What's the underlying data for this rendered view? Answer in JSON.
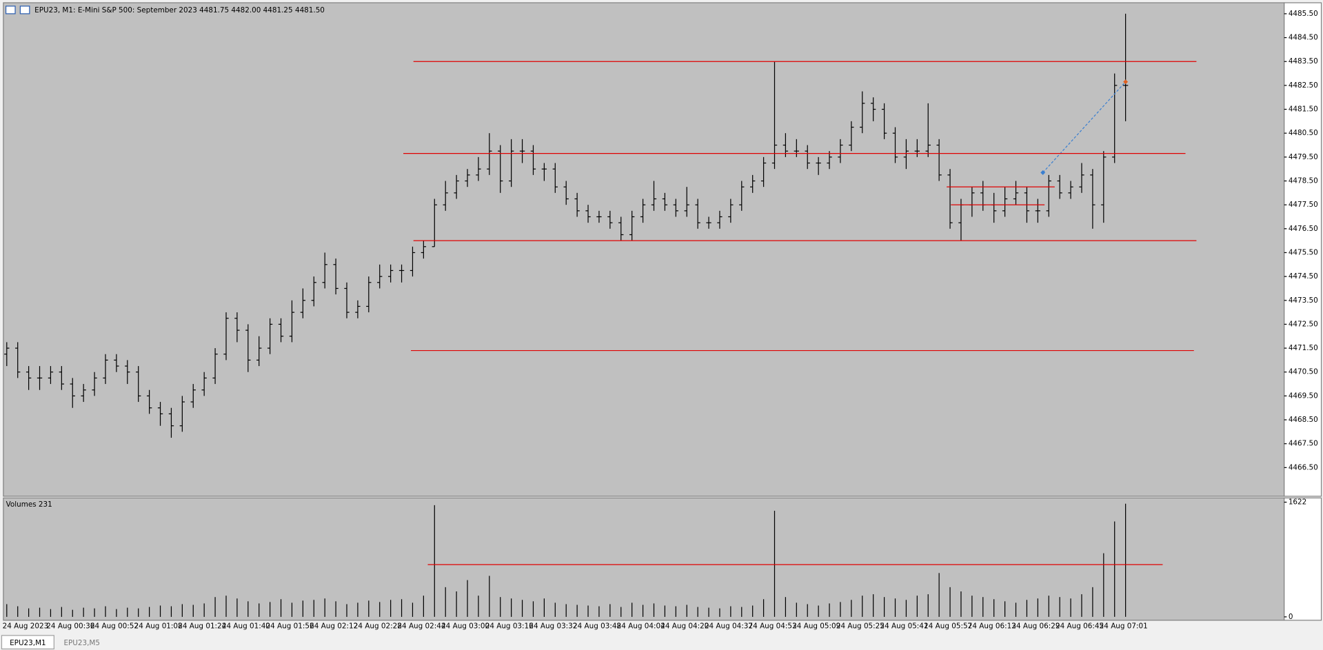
{
  "chart_data": [
    {
      "type": "ohlc",
      "title": "EPU23, M1:  E-Mini S&P 500: September 2023  4481.75 4482.00 4481.25 4481.50",
      "color": "#000000",
      "categories": [
        "24 Aug 2023",
        null,
        null,
        null,
        "24 Aug 00:36",
        null,
        null,
        null,
        "24 Aug 00:52",
        null,
        null,
        null,
        "24 Aug 01:08",
        null,
        null,
        null,
        "24 Aug 01:24",
        null,
        null,
        null,
        "24 Aug 01:40",
        null,
        null,
        null,
        "24 Aug 01:56",
        null,
        null,
        null,
        "24 Aug 02:12",
        null,
        null,
        null,
        "24 Aug 02:28",
        null,
        null,
        null,
        "24 Aug 02:44",
        null,
        null,
        null,
        "24 Aug 03:00",
        null,
        null,
        null,
        "24 Aug 03:16",
        null,
        null,
        null,
        "24 Aug 03:32",
        null,
        null,
        null,
        "24 Aug 03:48",
        null,
        null,
        null,
        "24 Aug 04:04",
        null,
        null,
        null,
        "24 Aug 04:20",
        null,
        null,
        null,
        "24 Aug 04:37",
        null,
        null,
        null,
        "24 Aug 04:53",
        null,
        null,
        null,
        "24 Aug 05:09",
        null,
        null,
        null,
        "24 Aug 05:25",
        null,
        null,
        null,
        "24 Aug 05:41",
        null,
        null,
        null,
        "24 Aug 05:57",
        null,
        null,
        null,
        "24 Aug 06:13",
        null,
        null,
        null,
        "24 Aug 06:29",
        null,
        null,
        null,
        "24 Aug 06:45",
        null,
        null,
        null,
        "24 Aug 07:01",
        null,
        null
      ],
      "open": [
        4471.25,
        4471.5,
        4470.5,
        4470.25,
        4470.25,
        4470.5,
        4470,
        4469.5,
        4469.75,
        4470.25,
        4471,
        4470.75,
        4470.5,
        4469.5,
        4469,
        4468.75,
        4468.25,
        4469.25,
        4469.75,
        4470.25,
        4471.25,
        4472.75,
        4472.25,
        4471,
        4471.5,
        4472.5,
        4472,
        4473,
        4473.5,
        4474.25,
        4475,
        4474,
        4473,
        4473.25,
        4474.25,
        4474.5,
        4474.75,
        4474.75,
        4475.5,
        4475.75,
        4477.5,
        4478,
        4478.5,
        4478.75,
        4479,
        4479.75,
        4478.5,
        4479.75,
        4479.75,
        4479,
        4479,
        4478.25,
        4477.75,
        4477.25,
        4477,
        4477,
        4476.75,
        4476.25,
        4477,
        4477.5,
        4477.75,
        4477.5,
        4477.25,
        4477.5,
        4476.75,
        4476.75,
        4477,
        4477.5,
        4478.25,
        4478.5,
        4479.25,
        4480,
        4479.75,
        4479.75,
        4479.25,
        4479.25,
        4479.5,
        4480,
        4480.75,
        4481.75,
        4481.5,
        4480.5,
        4479.5,
        4479.75,
        4479.75,
        4480,
        4478.75,
        4476.75,
        4477.5,
        4478,
        4477.5,
        4477.25,
        4477.75,
        4478,
        4477.25,
        4477.25,
        4478.5,
        4478,
        4478.25,
        4478.75,
        4477.5,
        4479.5,
        4482.5
      ],
      "high": [
        4471.75,
        4471.75,
        4470.75,
        4470.75,
        4470.75,
        4470.75,
        4470.25,
        4470,
        4470.5,
        4471.25,
        4471.25,
        4471,
        4470.75,
        4469.75,
        4469.25,
        4469,
        4469.5,
        4470,
        4470.5,
        4471.5,
        4473,
        4473,
        4472.5,
        4472,
        4472.75,
        4472.75,
        4473.5,
        4474,
        4474.5,
        4475.5,
        4475.25,
        4474.25,
        4473.5,
        4474.5,
        4475,
        4475,
        4475,
        4475.75,
        4476,
        4477.75,
        4478.5,
        4478.75,
        4479,
        4479.5,
        4480.5,
        4480,
        4480.25,
        4480.25,
        4480,
        4479.25,
        4479.25,
        4478.5,
        4478,
        4477.5,
        4477.25,
        4477.25,
        4477,
        4477.25,
        4477.75,
        4478.5,
        4478,
        4477.75,
        4478.25,
        4477.75,
        4477,
        4477.25,
        4477.75,
        4478.5,
        4478.75,
        4479.5,
        4483.5,
        4480.5,
        4480.25,
        4480,
        4479.5,
        4479.75,
        4480.25,
        4481,
        4482.25,
        4482,
        4481.75,
        4480.75,
        4480.25,
        4480.25,
        4481.75,
        4480.25,
        4479,
        4477.75,
        4478.25,
        4478.5,
        4478,
        4478.25,
        4478.5,
        4478.25,
        4477.75,
        4478.75,
        4478.75,
        4478.5,
        4479.25,
        4479,
        4479.75,
        4483,
        4485.5
      ],
      "low": [
        4470.75,
        4470.25,
        4469.75,
        4469.75,
        4470,
        4469.75,
        4469,
        4469.25,
        4469.5,
        4470,
        4470.5,
        4470,
        4469.25,
        4468.75,
        4468.25,
        4467.75,
        4468,
        4469,
        4469.5,
        4470,
        4471,
        4471.75,
        4470.5,
        4470.75,
        4471.25,
        4471.75,
        4471.75,
        4472.75,
        4473.25,
        4474,
        4473.75,
        4472.75,
        4472.75,
        4473,
        4474,
        4474.25,
        4474.25,
        4474.5,
        4475.25,
        4475.75,
        4477.25,
        4477.75,
        4478.25,
        4478.5,
        4478.75,
        4478,
        4478.25,
        4479.25,
        4478.75,
        4478.5,
        4478,
        4477.5,
        4477,
        4476.75,
        4476.75,
        4476.5,
        4476,
        4476,
        4476.75,
        4477.25,
        4477.25,
        4477,
        4477,
        4476.5,
        4476.5,
        4476.5,
        4476.75,
        4477.25,
        4478,
        4478.25,
        4479,
        4479.5,
        4479.5,
        4479,
        4478.75,
        4479,
        4479.25,
        4479.75,
        4480.5,
        4481,
        4480.25,
        4479.25,
        4479,
        4479.5,
        4479.5,
        4478.5,
        4476.5,
        4476,
        4477,
        4477.25,
        4476.75,
        4477,
        4477.5,
        4476.75,
        4476.75,
        4477,
        4477.75,
        4477.75,
        4478,
        4476.5,
        4476.75,
        4479.25,
        4481
      ],
      "close": [
        4471.5,
        4470.5,
        4470.25,
        4470.25,
        4470.5,
        4470,
        4469.5,
        4469.75,
        4470.25,
        4471,
        4470.75,
        4470.5,
        4469.5,
        4469,
        4468.75,
        4468.25,
        4469.25,
        4469.75,
        4470.25,
        4471.25,
        4472.75,
        4472.25,
        4471,
        4471.5,
        4472.5,
        4472,
        4473,
        4473.5,
        4474.25,
        4475,
        4474,
        4473,
        4473.25,
        4474.25,
        4474.5,
        4474.75,
        4474.75,
        4475.5,
        4475.75,
        4477.5,
        4478,
        4478.5,
        4478.75,
        4479,
        4479.75,
        4478.5,
        4479.75,
        4479.75,
        4479,
        4479,
        4478.25,
        4477.75,
        4477.25,
        4477,
        4477,
        4476.75,
        4476.25,
        4477,
        4477.5,
        4477.75,
        4477.5,
        4477.25,
        4477.5,
        4476.75,
        4476.75,
        4477,
        4477.5,
        4478.25,
        4478.5,
        4479.25,
        4480,
        4479.75,
        4479.75,
        4479.25,
        4479.25,
        4479.5,
        4480,
        4480.75,
        4481.75,
        4481.5,
        4480.5,
        4479.5,
        4479.75,
        4479.75,
        4480,
        4478.75,
        4476.75,
        4477.5,
        4478,
        4477.5,
        4477.25,
        4477.75,
        4478,
        4477.25,
        4477.25,
        4478.5,
        4478,
        4478.25,
        4478.75,
        4477.5,
        4479.5,
        4482.5,
        4482.5
      ],
      "levels": {
        "color": "#e00000",
        "values": [
          4483.5,
          4479.65,
          4476.0,
          4471.4,
          4478.25,
          4477.5
        ]
      },
      "trend_line": {
        "color": "#3a7fd0",
        "values": [
          4478.85,
          4482.65
        ]
      },
      "ylim": [
        4465.3,
        4485.96
      ],
      "yticks": [
        {
          "value": 4485.5,
          "label": "4485.50"
        },
        {
          "value": 4484.5,
          "label": "4484.50"
        },
        {
          "value": 4483.5,
          "label": "4483.50"
        },
        {
          "value": 4482.5,
          "label": "4482.50"
        },
        {
          "value": 4481.5,
          "label": "4481.50"
        },
        {
          "value": 4480.5,
          "label": "4480.50"
        },
        {
          "value": 4479.5,
          "label": "4479.50"
        },
        {
          "value": 4478.5,
          "label": "4478.50"
        },
        {
          "value": 4477.5,
          "label": "4477.50"
        },
        {
          "value": 4476.5,
          "label": "4476.50"
        },
        {
          "value": 4475.5,
          "label": "4475.50"
        },
        {
          "value": 4474.5,
          "label": "4474.50"
        },
        {
          "value": 4473.5,
          "label": "4473.50"
        },
        {
          "value": 4472.5,
          "label": "4472.50"
        },
        {
          "value": 4471.5,
          "label": "4471.50"
        },
        {
          "value": 4470.5,
          "label": "4470.50"
        },
        {
          "value": 4469.5,
          "label": "4469.50"
        },
        {
          "value": 4468.5,
          "label": "4468.50"
        },
        {
          "value": 4467.5,
          "label": "4467.50"
        },
        {
          "value": 4466.5,
          "label": "4466.50"
        }
      ]
    },
    {
      "type": "bar",
      "title": "Volumes 231",
      "color": "#000000",
      "values": [
        180,
        150,
        120,
        130,
        110,
        140,
        100,
        130,
        120,
        150,
        110,
        130,
        120,
        140,
        160,
        150,
        180,
        170,
        190,
        280,
        300,
        260,
        220,
        190,
        210,
        250,
        200,
        230,
        240,
        260,
        220,
        180,
        200,
        230,
        210,
        240,
        250,
        200,
        300,
        1580,
        420,
        360,
        520,
        300,
        580,
        280,
        260,
        240,
        220,
        260,
        200,
        180,
        170,
        160,
        150,
        180,
        140,
        200,
        170,
        190,
        160,
        150,
        170,
        140,
        130,
        120,
        150,
        140,
        160,
        250,
        1500,
        280,
        200,
        180,
        160,
        190,
        210,
        240,
        300,
        320,
        280,
        260,
        240,
        300,
        320,
        620,
        420,
        360,
        300,
        280,
        250,
        220,
        200,
        240,
        260,
        300,
        280,
        260,
        320,
        420,
        900,
        1350,
        1600
      ],
      "levels": {
        "color": "#e00000",
        "values": [
          739
        ]
      },
      "ylim": [
        -48,
        1670
      ],
      "yticks": [
        1622,
        0
      ]
    }
  ],
  "tabs": [
    "EPU23,M1",
    "EPU23,M5"
  ]
}
